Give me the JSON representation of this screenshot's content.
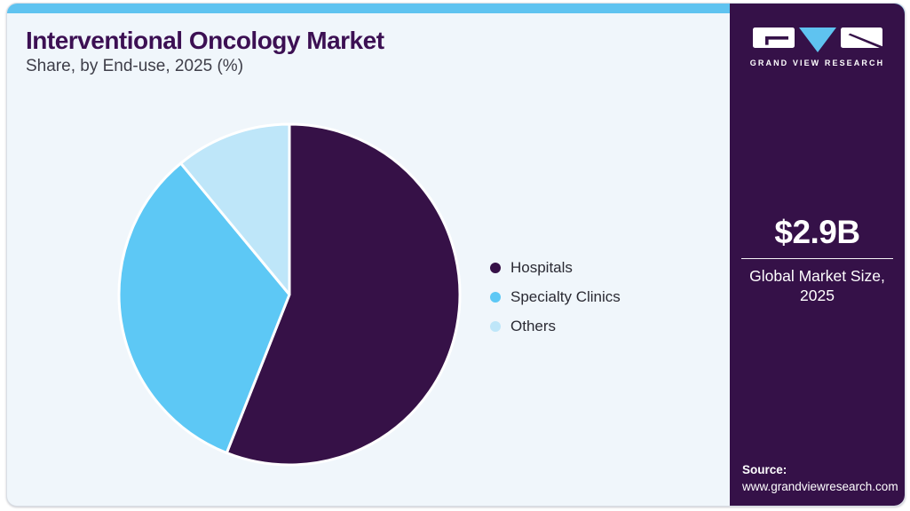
{
  "header": {
    "title": "Interventional Oncology Market",
    "subtitle": "Share, by End-use, 2025 (%)"
  },
  "chart_data": {
    "type": "pie",
    "title": "Interventional Oncology Market Share, by End-use, 2025 (%)",
    "categories": [
      "Hospitals",
      "Specialty Clinics",
      "Others"
    ],
    "values": [
      56,
      33,
      11
    ],
    "unit": "%",
    "colors": [
      "#361147",
      "#5DC8F5",
      "#BEE6F9"
    ],
    "start_angle_deg": 0,
    "direction": "clockwise",
    "legend_position": "right",
    "slice_border_color": "#FFFFFF"
  },
  "sidebar": {
    "logo_icon": "gvr-logo",
    "logo_text": "GRAND VIEW RESEARCH",
    "market_size_value": "$2.9B",
    "market_caption_line1": "Global Market Size,",
    "market_caption_line2": "2025",
    "source_label": "Source:",
    "source_url": "www.grandviewresearch.com"
  },
  "colors": {
    "card_bg": "#F0F6FB",
    "top_bar": "#5FC3F0",
    "sidebar_bg": "#351148",
    "title": "#3C1053",
    "subtitle": "#3E3E49",
    "legend_text": "#2A2A33"
  }
}
